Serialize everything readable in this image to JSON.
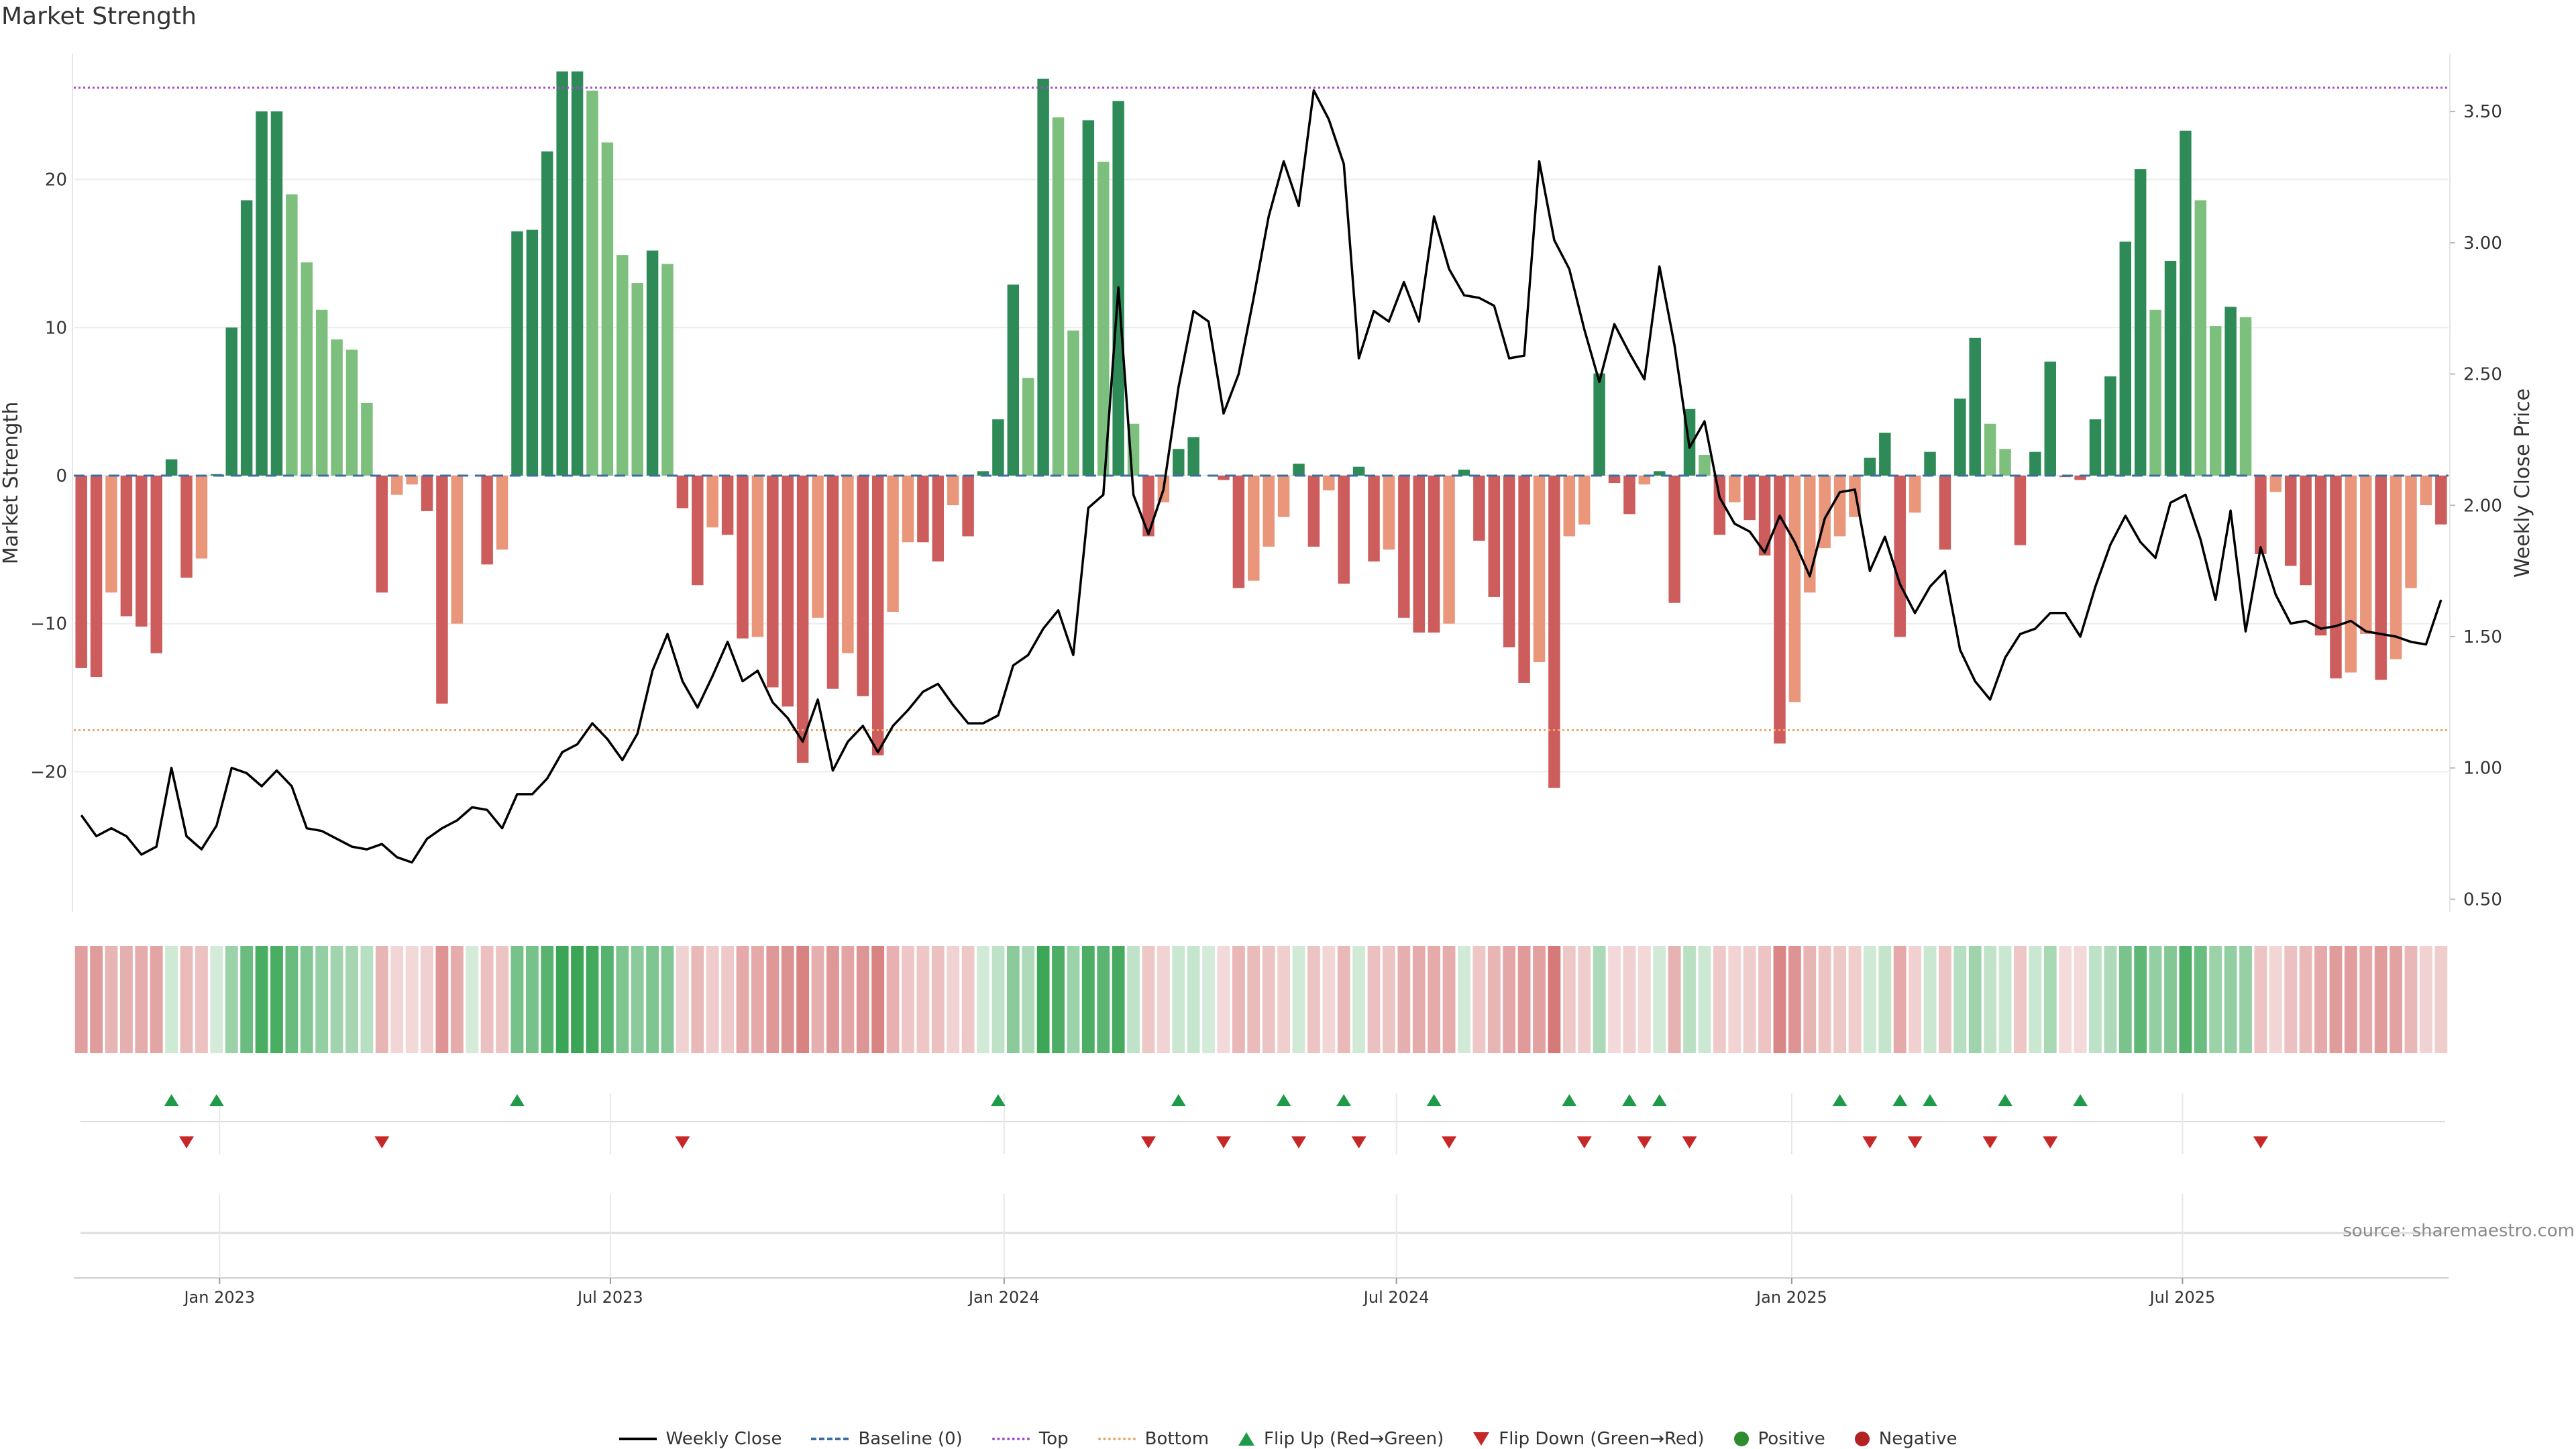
{
  "title": "Market Strength",
  "source": "source: sharemaestro.com",
  "colors": {
    "pos_strong": "#2e8b57",
    "pos_light": "#7dbf7d",
    "neg_strong": "#cd5c5c",
    "neg_light": "#e9967a",
    "close": "#000000",
    "baseline": "#3b6fa0",
    "top": "#a64ac9",
    "bottom": "#e9a86d",
    "flip_up": "#1f9a48",
    "flip_down": "#c62828",
    "positive": "#2e8b2e",
    "negative": "#b22222"
  },
  "chart_data": {
    "type": "bar",
    "title": "Market Strength",
    "ylabel": "Market Strength",
    "y2label": "Weekly Close Price",
    "ylim": [
      -29.5,
      28.5
    ],
    "y2lim": [
      0.45,
      3.72
    ],
    "yticks": [
      -20,
      -10,
      0,
      10,
      20
    ],
    "y2ticks": [
      "0.50",
      "1.00",
      "1.50",
      "2.00",
      "2.50",
      "3.00",
      "3.50"
    ],
    "xticks": [
      {
        "label": "Jan 2023",
        "week": 9.7
      },
      {
        "label": "Jul 2023",
        "week": 35.7
      },
      {
        "label": "Jan 2024",
        "week": 61.9
      },
      {
        "label": "Jul 2024",
        "week": 88.0
      },
      {
        "label": "Jan 2025",
        "week": 114.3
      },
      {
        "label": "Jul 2025",
        "week": 140.3
      }
    ],
    "top_line": 26.2,
    "bottom_line": -17.2,
    "baseline": 0,
    "series": [
      {
        "name": "Market Strength",
        "values": [
          -13.0,
          -13.6,
          -7.9,
          -9.5,
          -10.2,
          -12.0,
          1.1,
          -6.9,
          -5.6,
          0.1,
          10.0,
          18.6,
          24.6,
          24.6,
          19.0,
          14.4,
          11.2,
          9.2,
          8.5,
          4.9,
          -7.9,
          -1.3,
          -0.6,
          -2.4,
          -15.4,
          -10.0,
          0.0,
          -6.0,
          -5.0,
          16.5,
          16.6,
          21.9,
          27.3,
          27.3,
          26.0,
          22.5,
          14.9,
          13.0,
          15.2,
          14.3,
          -2.2,
          -7.4,
          -3.5,
          -4.0,
          -11.0,
          -10.9,
          -14.3,
          -15.6,
          -19.4,
          -9.6,
          -14.4,
          -12.0,
          -14.9,
          -18.9,
          -9.2,
          -4.5,
          -4.5,
          -5.8,
          -2.0,
          -4.1,
          0.3,
          3.8,
          12.9,
          6.6,
          26.8,
          24.2,
          9.8,
          24.0,
          21.2,
          25.3,
          3.5,
          -4.1,
          -1.8,
          1.8,
          2.6,
          0.0,
          -0.3,
          -7.6,
          -7.1,
          -4.8,
          -2.8,
          0.8,
          -4.8,
          -1.0,
          -7.3,
          0.6,
          -5.8,
          -5.0,
          -9.6,
          -10.6,
          -10.6,
          -10.0,
          0.4,
          -4.4,
          -8.2,
          -11.6,
          -14.0,
          -12.6,
          -21.1,
          -4.1,
          -3.3,
          6.9,
          -0.5,
          -2.6,
          -0.6,
          0.3,
          -8.6,
          4.5,
          1.4,
          -4.0,
          -1.8,
          -3.0,
          -5.4,
          -18.1,
          -15.3,
          -7.9,
          -4.9,
          -4.1,
          -2.8,
          1.2,
          2.9,
          -10.9,
          -2.5,
          1.6,
          -5.0,
          5.2,
          9.3,
          3.5,
          1.8,
          -4.7,
          1.6,
          7.7,
          -0.1,
          -0.3,
          3.8,
          6.7,
          15.8,
          20.7,
          11.2,
          14.5,
          23.3,
          18.6,
          10.1,
          11.4,
          10.7,
          -5.3,
          -1.1,
          -6.1,
          -7.4,
          -10.8,
          -13.7,
          -13.3,
          -10.7,
          -13.8,
          -12.4,
          -7.6,
          -2.0,
          -3.3
        ]
      },
      {
        "name": "Weekly Close",
        "values": [
          0.82,
          0.74,
          0.77,
          0.74,
          0.67,
          0.7,
          1.0,
          0.74,
          0.69,
          0.78,
          1.0,
          0.98,
          0.93,
          0.99,
          0.93,
          0.77,
          0.76,
          0.73,
          0.7,
          0.69,
          0.71,
          0.66,
          0.64,
          0.73,
          0.77,
          0.8,
          0.85,
          0.84,
          0.77,
          0.9,
          0.9,
          0.96,
          1.06,
          1.09,
          1.17,
          1.11,
          1.03,
          1.13,
          1.37,
          1.51,
          1.33,
          1.23,
          1.35,
          1.48,
          1.33,
          1.37,
          1.25,
          1.19,
          1.1,
          1.26,
          0.99,
          1.1,
          1.16,
          1.06,
          1.16,
          1.22,
          1.29,
          1.32,
          1.24,
          1.17,
          1.17,
          1.2,
          1.39,
          1.43,
          1.53,
          1.6,
          1.43,
          1.99,
          2.04,
          2.83,
          2.04,
          1.89,
          2.06,
          2.45,
          2.74,
          2.7,
          2.35,
          2.5,
          2.79,
          3.1,
          3.31,
          3.14,
          3.58,
          3.47,
          3.3,
          2.56,
          2.74,
          2.7,
          2.85,
          2.7,
          3.1,
          2.9,
          2.8,
          2.79,
          2.76,
          2.56,
          2.57,
          3.31,
          3.01,
          2.9,
          2.67,
          2.47,
          2.69,
          2.58,
          2.48,
          2.91,
          2.61,
          2.22,
          2.32,
          2.03,
          1.93,
          1.9,
          1.82,
          1.96,
          1.86,
          1.73,
          1.95,
          2.05,
          2.06,
          1.75,
          1.88,
          1.7,
          1.59,
          1.69,
          1.75,
          1.45,
          1.33,
          1.26,
          1.42,
          1.51,
          1.53,
          1.59,
          1.59,
          1.5,
          1.69,
          1.85,
          1.96,
          1.86,
          1.8,
          2.01,
          2.04,
          1.87,
          1.64,
          1.98,
          1.52,
          1.84,
          1.66,
          1.55,
          1.56,
          1.53,
          1.54,
          1.56,
          1.52,
          1.51,
          1.5,
          1.48,
          1.47,
          1.64
        ]
      }
    ],
    "flip_up_weeks": [
      6,
      9,
      29,
      61,
      73,
      80,
      84,
      90,
      99,
      103,
      105,
      117,
      121,
      123,
      128,
      133
    ],
    "flip_down_weeks": [
      7,
      20,
      40,
      71,
      76,
      81,
      85,
      91,
      100,
      104,
      107,
      119,
      122,
      127,
      131,
      145
    ],
    "legend": [
      "Weekly Close",
      "Baseline (0)",
      "Top",
      "Bottom",
      "Flip Up (Red→Green)",
      "Flip Down (Green→Red)",
      "Positive",
      "Negative"
    ]
  }
}
